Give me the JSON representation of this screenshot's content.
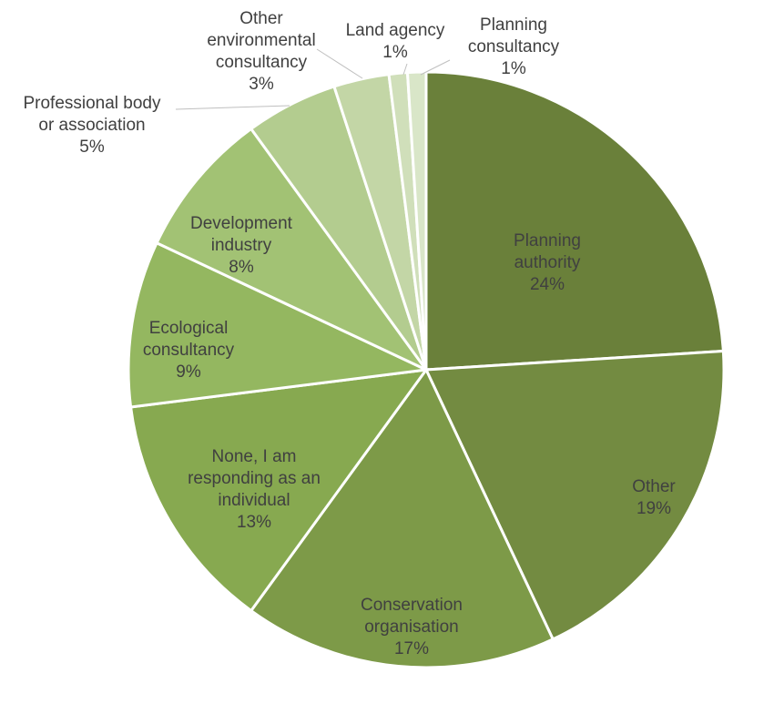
{
  "chart_data": {
    "type": "pie",
    "title": "",
    "start_angle_deg": 0,
    "direction": "clockwise",
    "slices": [
      {
        "label": [
          "Planning",
          "authority"
        ],
        "value": 24,
        "display": "24%",
        "color": "#6a803a",
        "label_color": "#404040"
      },
      {
        "label": [
          "Other"
        ],
        "value": 19,
        "display": "19%",
        "color": "#738b41",
        "label_color": "#404040"
      },
      {
        "label": [
          "Conservation",
          "organisation"
        ],
        "value": 17,
        "display": "17%",
        "color": "#7d9a48",
        "label_color": "#404040"
      },
      {
        "label": [
          "None, I am",
          "responding as an",
          "individual"
        ],
        "value": 13,
        "display": "13%",
        "color": "#87a950",
        "label_color": "#404040"
      },
      {
        "label": [
          "Ecological",
          "consultancy"
        ],
        "value": 9,
        "display": "9%",
        "color": "#94b760",
        "label_color": "#404040"
      },
      {
        "label": [
          "Development",
          "industry"
        ],
        "value": 8,
        "display": "8%",
        "color": "#a2c274",
        "label_color": "#404040"
      },
      {
        "label": [
          "Professional body",
          "or association"
        ],
        "value": 5,
        "display": "5%",
        "color": "#b3cc8f",
        "label_color": "#404040"
      },
      {
        "label": [
          "Other",
          "environmental",
          "consultancy"
        ],
        "value": 3,
        "display": "3%",
        "color": "#c3d6a6",
        "label_color": "#404040"
      },
      {
        "label": [
          "Land agency"
        ],
        "value": 1,
        "display": "1%",
        "color": "#d0dfba",
        "label_color": "#404040"
      },
      {
        "label": [
          "Planning",
          "consultancy"
        ],
        "value": 1,
        "display": "1%",
        "color": "#d9e6c8",
        "label_color": "#404040"
      }
    ]
  }
}
